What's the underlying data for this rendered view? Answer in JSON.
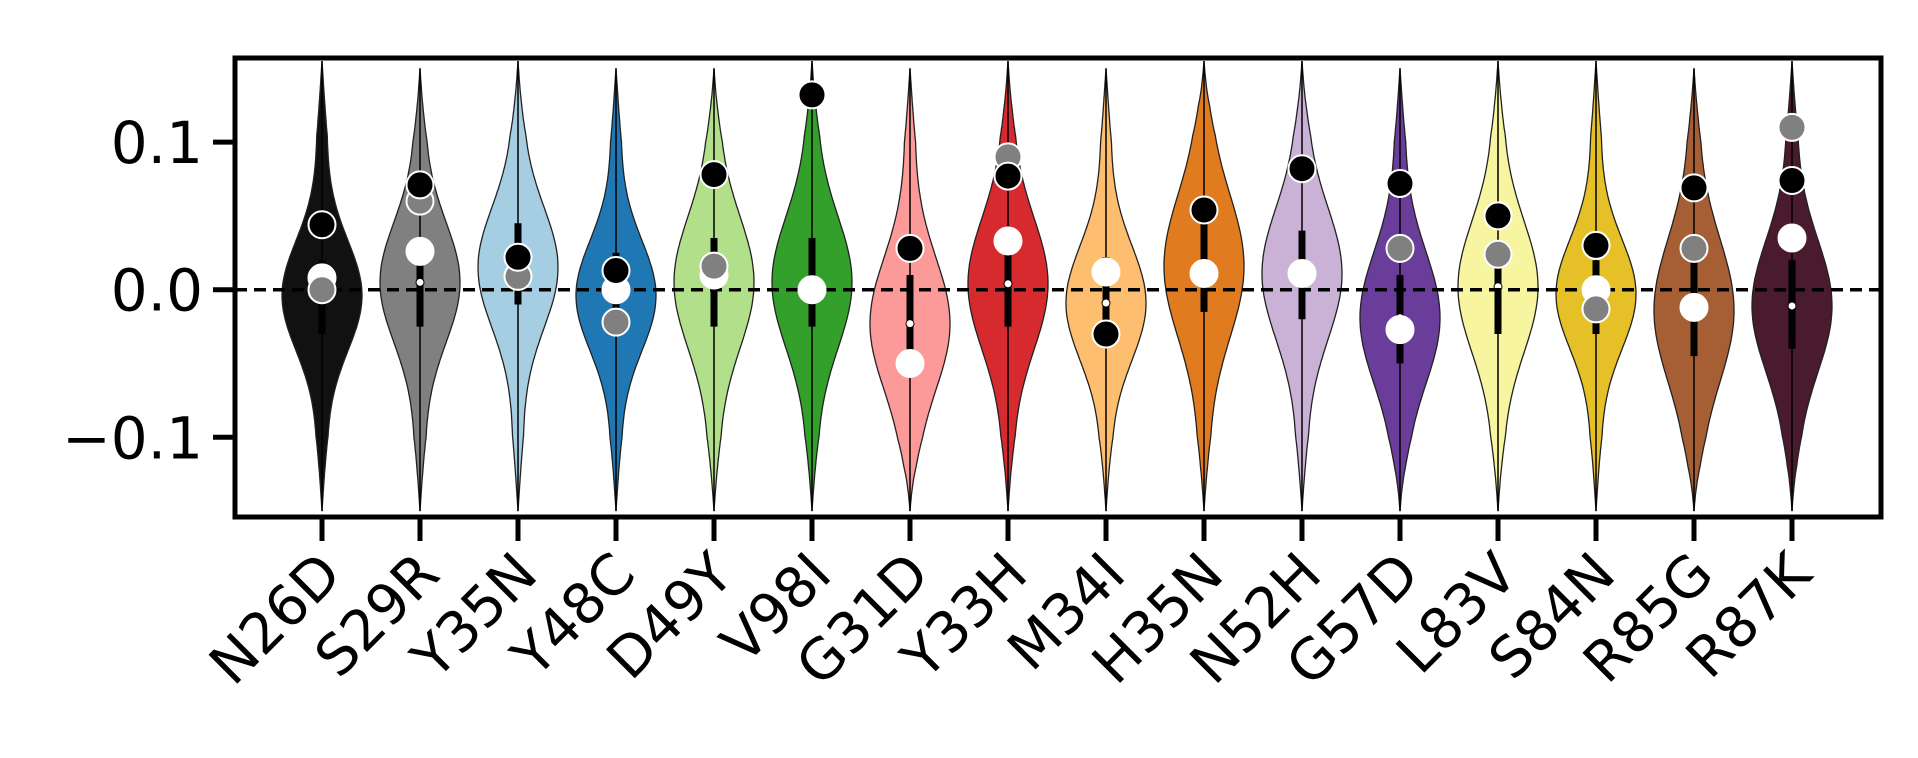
{
  "chart_data": {
    "type": "violin",
    "categories": [
      "N26D",
      "S29R",
      "Y35N",
      "Y48C",
      "D49Y",
      "V98I",
      "G31D",
      "Y33H",
      "M34I",
      "H35N",
      "N52H",
      "G57D",
      "L83V",
      "S84N",
      "R85G",
      "R87K"
    ],
    "violins": [
      {
        "color": "#111111",
        "min": -0.15,
        "q1": -0.03,
        "median": -0.004,
        "q3": 0.02,
        "max": 0.155
      },
      {
        "color": "#808080",
        "min": -0.15,
        "q1": -0.025,
        "median": 0.005,
        "q3": 0.03,
        "max": 0.15
      },
      {
        "color": "#a6cee3",
        "min": -0.15,
        "q1": -0.01,
        "median": 0.015,
        "q3": 0.045,
        "max": 0.155
      },
      {
        "color": "#1f78b4",
        "min": -0.15,
        "q1": -0.025,
        "median": -0.004,
        "q3": 0.025,
        "max": 0.15
      },
      {
        "color": "#b2df8a",
        "min": -0.15,
        "q1": -0.025,
        "median": 0.005,
        "q3": 0.035,
        "max": 0.15
      },
      {
        "color": "#33a02c",
        "min": -0.15,
        "q1": -0.025,
        "median": 0.005,
        "q3": 0.035,
        "max": 0.155
      },
      {
        "color": "#fb9a99",
        "min": -0.15,
        "q1": -0.05,
        "median": -0.023,
        "q3": 0.01,
        "max": 0.15
      },
      {
        "color": "#d62a2e",
        "min": -0.15,
        "q1": -0.025,
        "median": 0.004,
        "q3": 0.035,
        "max": 0.155
      },
      {
        "color": "#fdbf6f",
        "min": -0.15,
        "q1": -0.03,
        "median": -0.009,
        "q3": 0.022,
        "max": 0.15
      },
      {
        "color": "#e07b1f",
        "min": -0.15,
        "q1": -0.015,
        "median": 0.016,
        "q3": 0.05,
        "max": 0.155
      },
      {
        "color": "#cab2d6",
        "min": -0.15,
        "q1": -0.02,
        "median": 0.011,
        "q3": 0.04,
        "max": 0.155
      },
      {
        "color": "#6a3d9a",
        "min": -0.15,
        "q1": -0.05,
        "median": -0.019,
        "q3": 0.01,
        "max": 0.15
      },
      {
        "color": "#f8f5a0",
        "min": -0.15,
        "q1": -0.03,
        "median": 0.002,
        "q3": 0.03,
        "max": 0.155
      },
      {
        "color": "#e6c027",
        "min": -0.15,
        "q1": -0.03,
        "median": -0.003,
        "q3": 0.02,
        "max": 0.155
      },
      {
        "color": "#a65e34",
        "min": -0.15,
        "q1": -0.045,
        "median": -0.014,
        "q3": 0.02,
        "max": 0.15
      },
      {
        "color": "#4a1a2e",
        "min": -0.15,
        "q1": -0.04,
        "median": -0.011,
        "q3": 0.02,
        "max": 0.155
      }
    ],
    "markers": [
      {
        "color": "#ffffff",
        "values": [
          0.008,
          0.026,
          null,
          0.0,
          0.01,
          0.0,
          -0.05,
          0.033,
          0.012,
          0.011,
          0.011,
          -0.027,
          null,
          0.0,
          -0.012,
          0.035
        ]
      },
      {
        "color": "#808080",
        "values": [
          0.0,
          0.06,
          0.009,
          -0.022,
          0.016,
          null,
          null,
          0.09,
          null,
          null,
          null,
          0.028,
          0.024,
          -0.013,
          0.028,
          0.11
        ]
      },
      {
        "color": "#000000",
        "values": [
          0.044,
          0.071,
          0.022,
          0.013,
          0.078,
          0.132,
          0.028,
          0.077,
          -0.03,
          0.054,
          0.082,
          0.072,
          0.05,
          0.03,
          0.069,
          0.074
        ]
      }
    ],
    "ylim": [
      -0.154,
      0.157
    ],
    "yticks": [
      {
        "value": -0.1,
        "label": "−0.1"
      },
      {
        "value": 0,
        "label": "0.0"
      },
      0.1
    ],
    "hline": 0
  }
}
